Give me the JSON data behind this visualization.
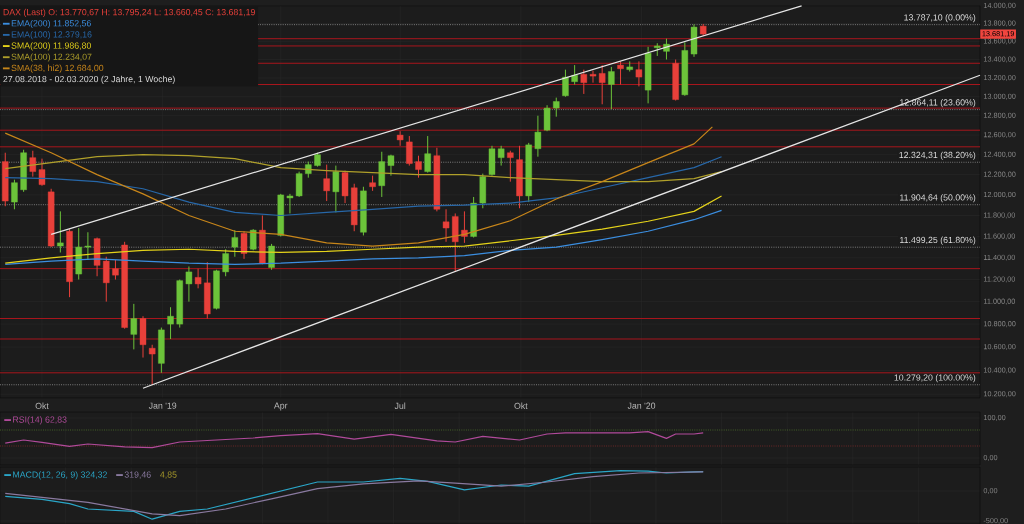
{
  "chart_data": [
    {
      "type": "candlestick",
      "title": "DAX (Last)  O: 13.770,67  H: 13.795,24  L: 13.660,45  C: 13.681,19",
      "subtitle": "27.08.2018 - 02.03.2020  (2 Jahre, 1 Woche)",
      "x": [
        "2018-09-03",
        "2018-09-10",
        "2018-09-17",
        "2018-09-24",
        "2018-10-01",
        "2018-10-08",
        "2018-10-15",
        "2018-10-22",
        "2018-10-29",
        "2018-11-05",
        "2018-11-12",
        "2018-11-19",
        "2018-11-26",
        "2018-12-03",
        "2018-12-10",
        "2018-12-17",
        "2018-12-24",
        "2018-12-31",
        "2019-01-07",
        "2019-01-14",
        "2019-01-21",
        "2019-01-28",
        "2019-02-04",
        "2019-02-11",
        "2019-02-18",
        "2019-02-25",
        "2019-03-04",
        "2019-03-11",
        "2019-03-18",
        "2019-03-25",
        "2019-04-01",
        "2019-04-08",
        "2019-04-15",
        "2019-04-22",
        "2019-04-29",
        "2019-05-06",
        "2019-05-13",
        "2019-05-20",
        "2019-05-27",
        "2019-06-03",
        "2019-06-10",
        "2019-06-17",
        "2019-06-24",
        "2019-07-01",
        "2019-07-08",
        "2019-07-15",
        "2019-07-22",
        "2019-07-29",
        "2019-08-05",
        "2019-08-12",
        "2019-08-19",
        "2019-08-26",
        "2019-09-02",
        "2019-09-09",
        "2019-09-16",
        "2019-09-23",
        "2019-09-30",
        "2019-10-07",
        "2019-10-14",
        "2019-10-21",
        "2019-10-28",
        "2019-11-04",
        "2019-11-11",
        "2019-11-18",
        "2019-11-25",
        "2019-12-02",
        "2019-12-09",
        "2019-12-16",
        "2019-12-23",
        "2019-12-30",
        "2020-01-06",
        "2020-01-13",
        "2020-01-20",
        "2020-01-27",
        "2020-02-03",
        "2020-02-10",
        "2020-02-17"
      ],
      "ohlc": [
        [
          12330,
          12420,
          11890,
          11940
        ],
        [
          11930,
          12150,
          11860,
          12120
        ],
        [
          12050,
          12450,
          12030,
          12420
        ],
        [
          12370,
          12440,
          12180,
          12230
        ],
        [
          12250,
          12360,
          12090,
          12100
        ],
        [
          12030,
          12060,
          11500,
          11510
        ],
        [
          11510,
          11840,
          11450,
          11540
        ],
        [
          11650,
          11670,
          11040,
          11180
        ],
        [
          11250,
          11680,
          11200,
          11500
        ],
        [
          11500,
          11640,
          11380,
          11510
        ],
        [
          11580,
          11590,
          11230,
          11330
        ],
        [
          11370,
          11410,
          11000,
          11170
        ],
        [
          11300,
          11380,
          11200,
          11240
        ],
        [
          11520,
          11550,
          10760,
          10770
        ],
        [
          10710,
          10980,
          10580,
          10850
        ],
        [
          10850,
          10870,
          10510,
          10620
        ],
        [
          10590,
          10620,
          10280,
          10540
        ],
        [
          10460,
          10770,
          10380,
          10750
        ],
        [
          10800,
          10950,
          10670,
          10870
        ],
        [
          10800,
          11200,
          10770,
          11190
        ],
        [
          11160,
          11320,
          11000,
          11270
        ],
        [
          11220,
          11300,
          11120,
          11160
        ],
        [
          11170,
          11360,
          10850,
          10890
        ],
        [
          10940,
          11290,
          10930,
          11280
        ],
        [
          11270,
          11480,
          11230,
          11440
        ],
        [
          11500,
          11660,
          11410,
          11590
        ],
        [
          11630,
          11650,
          11390,
          11440
        ],
        [
          11480,
          11670,
          11470,
          11660
        ],
        [
          11660,
          11800,
          11340,
          11350
        ],
        [
          11310,
          11530,
          11290,
          11510
        ],
        [
          11610,
          12010,
          11600,
          12000
        ],
        [
          11970,
          12010,
          11820,
          11990
        ],
        [
          11990,
          12230,
          11980,
          12210
        ],
        [
          12210,
          12330,
          12170,
          12300
        ],
        [
          12290,
          12420,
          12280,
          12400
        ],
        [
          12160,
          12300,
          11940,
          12040
        ],
        [
          12030,
          12290,
          11830,
          12230
        ],
        [
          12220,
          12240,
          11920,
          11990
        ],
        [
          12070,
          12110,
          11650,
          11710
        ],
        [
          11640,
          12080,
          11610,
          12040
        ],
        [
          12120,
          12190,
          12040,
          12080
        ],
        [
          12090,
          12430,
          11980,
          12330
        ],
        [
          12290,
          12400,
          12190,
          12390
        ],
        [
          12600,
          12640,
          12490,
          12550
        ],
        [
          12530,
          12590,
          12290,
          12310
        ],
        [
          12330,
          12390,
          12170,
          12250
        ],
        [
          12230,
          12590,
          12220,
          12410
        ],
        [
          12390,
          12470,
          11840,
          11860
        ],
        [
          11740,
          11860,
          11550,
          11680
        ],
        [
          11790,
          11820,
          11270,
          11550
        ],
        [
          11660,
          11840,
          11540,
          11600
        ],
        [
          11600,
          11980,
          11590,
          11920
        ],
        [
          11920,
          12210,
          11870,
          12180
        ],
        [
          12200,
          12490,
          12190,
          12460
        ],
        [
          12370,
          12490,
          12290,
          12460
        ],
        [
          12420,
          12440,
          12130,
          12370
        ],
        [
          12350,
          12490,
          11870,
          11990
        ],
        [
          11990,
          12520,
          11930,
          12500
        ],
        [
          12460,
          12800,
          12380,
          12630
        ],
        [
          12650,
          12910,
          12640,
          12880
        ],
        [
          12880,
          12990,
          12790,
          12950
        ],
        [
          13010,
          13290,
          13000,
          13210
        ],
        [
          13160,
          13340,
          13130,
          13230
        ],
        [
          13240,
          13290,
          13030,
          13150
        ],
        [
          13240,
          13280,
          13150,
          13220
        ],
        [
          13250,
          13340,
          12920,
          13150
        ],
        [
          13130,
          13320,
          12870,
          13270
        ],
        [
          13340,
          13380,
          13130,
          13300
        ],
        [
          13290,
          13380,
          13270,
          13320
        ],
        [
          13290,
          13380,
          13110,
          13210
        ],
        [
          13070,
          13540,
          12930,
          13470
        ],
        [
          13530,
          13580,
          13440,
          13550
        ],
        [
          13490,
          13630,
          13400,
          13570
        ],
        [
          13360,
          13400,
          12960,
          12970
        ],
        [
          13020,
          13590,
          13010,
          13500
        ],
        [
          13460,
          13790,
          13430,
          13760
        ],
        [
          13770.67,
          13795.24,
          13660.45,
          13681.19
        ]
      ],
      "colors": [
        "#e8403a",
        "#6cc33a",
        "#6cc33a",
        "#e8403a",
        "#e8403a",
        "#e8403a",
        "#6cc33a",
        "#e8403a",
        "#6cc33a",
        "#6cc33a",
        "#e8403a",
        "#e8403a",
        "#e8403a",
        "#e8403a",
        "#6cc33a",
        "#e8403a",
        "#e8403a",
        "#6cc33a",
        "#6cc33a",
        "#6cc33a",
        "#6cc33a",
        "#e8403a",
        "#e8403a",
        "#6cc33a",
        "#6cc33a",
        "#6cc33a",
        "#e8403a",
        "#6cc33a",
        "#e8403a",
        "#6cc33a",
        "#6cc33a",
        "#6cc33a",
        "#6cc33a",
        "#6cc33a",
        "#6cc33a",
        "#e8403a",
        "#6cc33a",
        "#e8403a",
        "#e8403a",
        "#6cc33a",
        "#e8403a",
        "#6cc33a",
        "#6cc33a",
        "#e8403a",
        "#e8403a",
        "#e8403a",
        "#6cc33a",
        "#e8403a",
        "#e8403a",
        "#e8403a",
        "#e8403a",
        "#6cc33a",
        "#6cc33a",
        "#6cc33a",
        "#6cc33a",
        "#e8403a",
        "#e8403a",
        "#6cc33a",
        "#6cc33a",
        "#6cc33a",
        "#6cc33a",
        "#6cc33a",
        "#6cc33a",
        "#e8403a",
        "#e8403a",
        "#e8403a",
        "#6cc33a",
        "#e8403a",
        "#6cc33a",
        "#e8403a",
        "#6cc33a",
        "#6cc33a",
        "#6cc33a",
        "#e8403a",
        "#6cc33a",
        "#6cc33a",
        "#e8403a"
      ],
      "series": [
        {
          "type": "line",
          "name": "EMA(200)  11.852,56",
          "color": "#3b8ee0",
          "x": [
            "2018-09-03",
            "2018-10-08",
            "2018-11-12",
            "2018-12-17",
            "2019-01-21",
            "2019-02-25",
            "2019-04-01",
            "2019-05-06",
            "2019-06-10",
            "2019-07-15",
            "2019-08-19",
            "2019-09-23",
            "2019-10-28",
            "2019-12-02",
            "2020-01-06",
            "2020-02-10",
            "2020-03-02"
          ],
          "values": [
            11340,
            11370,
            11390,
            11370,
            11350,
            11340,
            11350,
            11370,
            11390,
            11400,
            11420,
            11470,
            11500,
            11570,
            11650,
            11760,
            11850
          ]
        },
        {
          "type": "line",
          "name": "EMA(100)  12.379,16",
          "color": "#2767a8",
          "x": [
            "2018-09-03",
            "2018-10-08",
            "2018-11-12",
            "2018-12-17",
            "2019-01-21",
            "2019-02-25",
            "2019-04-01",
            "2019-05-06",
            "2019-06-10",
            "2019-07-15",
            "2019-08-19",
            "2019-09-23",
            "2019-10-28",
            "2019-12-02",
            "2020-01-06",
            "2020-02-10",
            "2020-03-02"
          ],
          "values": [
            12170,
            12160,
            12130,
            12060,
            11930,
            11830,
            11800,
            11830,
            11860,
            11890,
            11900,
            11920,
            11970,
            12070,
            12170,
            12270,
            12380
          ]
        },
        {
          "type": "line",
          "name": "SMA(200)  11.986,80",
          "color": "#e5d31a",
          "x": [
            "2018-09-03",
            "2018-10-08",
            "2018-11-12",
            "2018-12-17",
            "2019-01-21",
            "2019-02-25",
            "2019-04-01",
            "2019-05-06",
            "2019-06-10",
            "2019-07-15",
            "2019-08-19",
            "2019-09-23",
            "2019-10-28",
            "2019-12-02",
            "2020-01-06",
            "2020-02-10",
            "2020-03-02"
          ],
          "values": [
            11350,
            11400,
            11440,
            11470,
            11480,
            11460,
            11450,
            11460,
            11480,
            11500,
            11510,
            11560,
            11610,
            11670,
            11745,
            11840,
            11990
          ]
        },
        {
          "type": "line",
          "name": "SMA(100)  12.234,07",
          "color": "#b0a02a",
          "x": [
            "2018-09-03",
            "2018-10-08",
            "2018-11-12",
            "2018-12-17",
            "2019-01-21",
            "2019-02-25",
            "2019-04-01",
            "2019-05-06",
            "2019-06-10",
            "2019-07-15",
            "2019-08-19",
            "2019-09-23",
            "2019-10-28",
            "2019-12-02",
            "2020-01-06",
            "2020-02-10",
            "2020-03-02"
          ],
          "values": [
            12260,
            12320,
            12380,
            12400,
            12390,
            12360,
            12270,
            12240,
            12220,
            12200,
            12200,
            12170,
            12150,
            12130,
            12130,
            12160,
            12230
          ]
        },
        {
          "type": "line",
          "name": "SMA(38, hi2)  12.684,00",
          "color": "#c8861a",
          "x": [
            "2018-09-03",
            "2018-10-08",
            "2018-11-12",
            "2018-12-17",
            "2019-01-21",
            "2019-02-25",
            "2019-04-01",
            "2019-05-06",
            "2019-06-10",
            "2019-07-15",
            "2019-08-19",
            "2019-09-23",
            "2019-10-28",
            "2019-12-02",
            "2020-01-06",
            "2020-02-10",
            "2020-02-24"
          ],
          "values": [
            12620,
            12420,
            12200,
            12010,
            11800,
            11650,
            11620,
            11540,
            11510,
            11540,
            11620,
            11750,
            11960,
            12130,
            12320,
            12510,
            12684
          ]
        },
        {
          "type": "line",
          "color": "#e6e6e6",
          "x": [
            "2018-10-08",
            "2020-05-02"
          ],
          "values": [
            11620,
            14000
          ]
        },
        {
          "type": "line",
          "color": "#e6e6e6",
          "x": [
            "2018-12-17",
            "2020-09-15"
          ],
          "values": [
            10250,
            13230
          ]
        }
      ],
      "ref_lines": [
        {
          "axis": "y",
          "value": 13787.1,
          "label": "13.787,10 (0.00%)",
          "color": "#8a8a8a",
          "line_style": "dotted"
        },
        {
          "axis": "y",
          "value": 12864.11,
          "label": "12.864,11 (23.60%)",
          "color": "#8a8a8a",
          "line_style": "dotted"
        },
        {
          "axis": "y",
          "value": 12324.31,
          "label": "12.324,31 (38.20%)",
          "color": "#8a8a8a",
          "line_style": "dotted"
        },
        {
          "axis": "y",
          "value": 11904.64,
          "label": "11.904,64 (50.00%)",
          "color": "#8a8a8a",
          "line_style": "dotted"
        },
        {
          "axis": "y",
          "value": 11499.25,
          "label": "11.499,25 (61.80%)",
          "color": "#8a8a8a",
          "line_style": "dotted"
        },
        {
          "axis": "y",
          "value": 10279.2,
          "label": "10.279,20 (100.00%)",
          "color": "#8a8a8a",
          "line_style": "dotted"
        },
        {
          "axis": "y",
          "value": 13630,
          "label": null,
          "color": "#b3141c",
          "line_style": "solid"
        },
        {
          "axis": "y",
          "value": 13550,
          "label": null,
          "color": "#b3141c",
          "line_style": "solid"
        },
        {
          "axis": "y",
          "value": 13360,
          "label": null,
          "color": "#b3141c",
          "line_style": "solid"
        },
        {
          "axis": "y",
          "value": 13130,
          "label": null,
          "color": "#b3141c",
          "line_style": "solid"
        },
        {
          "axis": "y",
          "value": 12880,
          "label": null,
          "color": "#b3141c",
          "line_style": "solid"
        },
        {
          "axis": "y",
          "value": 12650,
          "label": null,
          "color": "#b3141c",
          "line_style": "solid"
        },
        {
          "axis": "y",
          "value": 12480,
          "label": null,
          "color": "#b3141c",
          "line_style": "solid"
        },
        {
          "axis": "y",
          "value": 11300,
          "label": null,
          "color": "#b3141c",
          "line_style": "solid"
        },
        {
          "axis": "y",
          "value": 10850,
          "label": null,
          "color": "#b3141c",
          "line_style": "solid"
        },
        {
          "axis": "y",
          "value": 10670,
          "label": null,
          "color": "#b3141c",
          "line_style": "solid"
        },
        {
          "axis": "y",
          "value": 10380,
          "label": null,
          "color": "#b3141c",
          "line_style": "solid"
        }
      ],
      "annotations": [
        "13.681,19"
      ],
      "log": true,
      "xlim": [
        "2018-08-30",
        "2020-09-15"
      ],
      "ylim": [
        10170,
        14000
      ],
      "xticks": [
        {
          "value": "2018-10-01",
          "label": "Okt"
        },
        {
          "value": "2019-01-01",
          "label": "Jan '19"
        },
        {
          "value": "2019-04-01",
          "label": "Apr"
        },
        {
          "value": "2019-07-01",
          "label": "Jul"
        },
        {
          "value": "2019-10-01",
          "label": "Okt"
        },
        {
          "value": "2020-01-01",
          "label": "Jan '20"
        }
      ],
      "yticks": [
        {
          "value": 10200,
          "label": "10.200,00"
        },
        {
          "value": 10400,
          "label": "10.400,00"
        },
        {
          "value": 10600,
          "label": "10.600,00"
        },
        {
          "value": 10800,
          "label": "10.800,00"
        },
        {
          "value": 11000,
          "label": "11.000,00"
        },
        {
          "value": 11200,
          "label": "11.200,00"
        },
        {
          "value": 11400,
          "label": "11.400,00"
        },
        {
          "value": 11600,
          "label": "11.600,00"
        },
        {
          "value": 11800,
          "label": "11.800,00"
        },
        {
          "value": 12000,
          "label": "12.000,00"
        },
        {
          "value": 12200,
          "label": "12.200,00"
        },
        {
          "value": 12400,
          "label": "12.400,00"
        },
        {
          "value": 12600,
          "label": "12.600,00"
        },
        {
          "value": 12800,
          "label": "12.800,00"
        },
        {
          "value": 13000,
          "label": "13.000,00"
        },
        {
          "value": 13200,
          "label": "13.200,00"
        },
        {
          "value": 13400,
          "label": "13.400,00"
        },
        {
          "value": 13600,
          "label": "13.600,00"
        },
        {
          "value": 13800,
          "label": "13.800,00"
        },
        {
          "value": 14000,
          "label": "14.000,00"
        }
      ],
      "grid": true,
      "legend": "top left"
    },
    {
      "type": "line",
      "series": [
        {
          "name": "RSI(14)  62,83",
          "color": "#b04a9a",
          "x": [
            "2018-09-03",
            "2018-09-17",
            "2018-10-01",
            "2018-10-22",
            "2018-11-05",
            "2018-12-03",
            "2018-12-24",
            "2019-01-14",
            "2019-02-11",
            "2019-03-11",
            "2019-04-01",
            "2019-04-29",
            "2019-05-27",
            "2019-06-24",
            "2019-07-29",
            "2019-08-12",
            "2019-09-02",
            "2019-09-30",
            "2019-10-21",
            "2019-11-04",
            "2019-12-23",
            "2020-01-06",
            "2020-01-20",
            "2020-01-27",
            "2020-02-10",
            "2020-02-17"
          ],
          "values": [
            37,
            45,
            39,
            29,
            35,
            28,
            26,
            40,
            45,
            50,
            56,
            61,
            47,
            59,
            43,
            40,
            54,
            45,
            60,
            63,
            63,
            66,
            49,
            60,
            60,
            62.83
          ]
        }
      ],
      "ref_lines": [
        {
          "axis": "y",
          "value": 70,
          "label": null,
          "color": "#4a6a2a",
          "line_style": "dotted"
        },
        {
          "axis": "y",
          "value": 30,
          "label": null,
          "color": "#7a2a2a",
          "line_style": "dotted"
        }
      ],
      "xlim": [
        "2018-08-30",
        "2020-09-15"
      ],
      "ylim": [
        -17.5,
        115
      ],
      "yticks": [
        {
          "value": 100,
          "label": "100,00"
        },
        {
          "value": 0,
          "label": "0,00"
        }
      ],
      "tick_labels": "y",
      "grid": true,
      "legend": "top left"
    },
    {
      "type": "line",
      "series": [
        {
          "name": "MACD(12, 26, 9)  324,32",
          "color": "#2aa6c8",
          "x": [
            "2018-09-03",
            "2018-10-01",
            "2018-10-22",
            "2018-11-05",
            "2018-12-10",
            "2018-12-24",
            "2019-01-14",
            "2019-02-04",
            "2019-03-04",
            "2019-04-01",
            "2019-04-29",
            "2019-06-03",
            "2019-07-01",
            "2019-07-22",
            "2019-08-19",
            "2019-09-16",
            "2019-10-07",
            "2019-11-11",
            "2019-12-16",
            "2020-01-06",
            "2020-01-20",
            "2020-02-10",
            "2020-02-17"
          ],
          "values": [
            -90,
            -140,
            -210,
            -300,
            -340,
            -470,
            -340,
            -300,
            -150,
            0,
            150,
            150,
            210,
            160,
            20,
            100,
            80,
            290,
            340,
            330,
            300,
            320,
            324.32
          ]
        },
        {
          "name": "319,46",
          "color": "#8a7aa0",
          "x": [
            "2018-09-03",
            "2018-11-05",
            "2018-12-24",
            "2019-01-14",
            "2019-02-18",
            "2019-03-25",
            "2019-04-29",
            "2019-06-03",
            "2019-07-15",
            "2019-08-12",
            "2019-09-16",
            "2019-10-21",
            "2019-11-25",
            "2019-12-30",
            "2020-02-17"
          ],
          "values": [
            -40,
            -190,
            -380,
            -410,
            -300,
            -130,
            40,
            120,
            170,
            130,
            80,
            150,
            240,
            300,
            319.46
          ]
        }
      ],
      "annotations": [
        "4,85"
      ],
      "xlim": [
        "2018-08-30",
        "2020-09-15"
      ],
      "ylim": [
        -550,
        400
      ],
      "yticks": [
        {
          "value": 0,
          "label": "0,00"
        },
        {
          "value": -500,
          "label": "-500,00"
        }
      ],
      "tick_labels": "y",
      "grid": true,
      "legend": "top left"
    }
  ]
}
